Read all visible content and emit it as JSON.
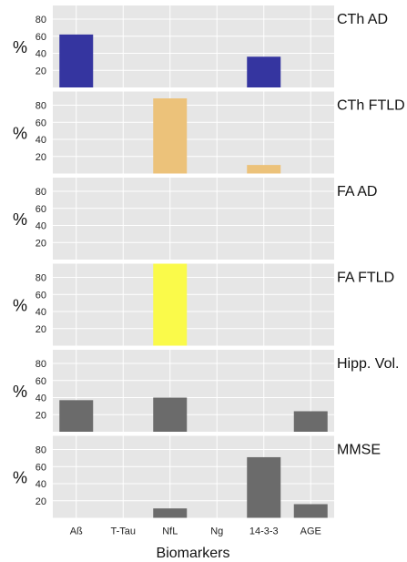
{
  "xlabel": "Biomarkers",
  "ylabel": "%",
  "chart_data": [
    {
      "type": "bar",
      "title": "CTh AD",
      "categories": [
        "Aß",
        "T-Tau",
        "NfL",
        "Ng",
        "14-3-3",
        "AGE"
      ],
      "values": [
        62,
        0,
        0,
        0,
        36,
        0
      ],
      "color": "#3535a0",
      "ylabel": "%",
      "yticks": [
        20,
        40,
        60,
        80
      ],
      "ylim": [
        0,
        96
      ],
      "grid": true
    },
    {
      "type": "bar",
      "title": "CTh FTLD",
      "categories": [
        "Aß",
        "T-Tau",
        "NfL",
        "Ng",
        "14-3-3",
        "AGE"
      ],
      "values": [
        0,
        0,
        88,
        0,
        10,
        0
      ],
      "color": "#ecc27a",
      "ylabel": "%",
      "yticks": [
        20,
        40,
        60,
        80
      ],
      "ylim": [
        0,
        96
      ],
      "grid": true
    },
    {
      "type": "bar",
      "title": "FA AD",
      "categories": [
        "Aß",
        "T-Tau",
        "NfL",
        "Ng",
        "14-3-3",
        "AGE"
      ],
      "values": [
        0,
        0,
        0,
        0,
        0,
        0
      ],
      "color": "#777777",
      "ylabel": "%",
      "yticks": [
        20,
        40,
        60,
        80
      ],
      "ylim": [
        0,
        96
      ],
      "grid": true
    },
    {
      "type": "bar",
      "title": "FA FTLD",
      "categories": [
        "Aß",
        "T-Tau",
        "NfL",
        "Ng",
        "14-3-3",
        "AGE"
      ],
      "values": [
        0,
        0,
        100,
        0,
        0,
        0
      ],
      "color": "#fafa4a",
      "ylabel": "%",
      "yticks": [
        20,
        40,
        60,
        80
      ],
      "ylim": [
        0,
        96
      ],
      "grid": true
    },
    {
      "type": "bar",
      "title": "Hipp. Vol.",
      "categories": [
        "Aß",
        "T-Tau",
        "NfL",
        "Ng",
        "14-3-3",
        "AGE"
      ],
      "values": [
        37,
        0,
        40,
        0,
        0,
        24
      ],
      "color": "#6b6b6b",
      "ylabel": "%",
      "yticks": [
        20,
        40,
        60,
        80
      ],
      "ylim": [
        0,
        96
      ],
      "grid": true
    },
    {
      "type": "bar",
      "title": "MMSE",
      "categories": [
        "Aß",
        "T-Tau",
        "NfL",
        "Ng",
        "14-3-3",
        "AGE"
      ],
      "values": [
        0,
        0,
        11,
        0,
        71,
        16
      ],
      "color": "#6b6b6b",
      "ylabel": "%",
      "yticks": [
        20,
        40,
        60,
        80
      ],
      "ylim": [
        0,
        96
      ],
      "grid": true
    }
  ],
  "colors": {
    "panel_background": "#e6e6e6",
    "grid": "#ffffff"
  }
}
